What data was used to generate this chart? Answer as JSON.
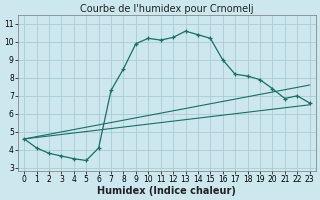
{
  "title": "Courbe de l'humidex pour Crnomelj",
  "xlabel": "Humidex (Indice chaleur)",
  "bg_color": "#cce8ee",
  "grid_color": "#aaccd4",
  "line_color": "#1a6e64",
  "xlim_min": -0.5,
  "xlim_max": 23.5,
  "ylim_min": 2.8,
  "ylim_max": 11.5,
  "xticks": [
    0,
    1,
    2,
    3,
    4,
    5,
    6,
    7,
    8,
    9,
    10,
    11,
    12,
    13,
    14,
    15,
    16,
    17,
    18,
    19,
    20,
    21,
    22,
    23
  ],
  "yticks": [
    3,
    4,
    5,
    6,
    7,
    8,
    9,
    10,
    11
  ],
  "curve1_x": [
    0,
    1,
    2,
    3,
    4,
    5,
    6,
    7,
    8,
    9,
    10,
    11,
    12,
    13,
    14,
    15,
    16,
    17,
    18,
    19,
    20,
    21,
    22,
    23
  ],
  "curve1_y": [
    4.6,
    4.1,
    3.8,
    3.65,
    3.5,
    3.4,
    4.1,
    7.3,
    8.5,
    9.9,
    10.2,
    10.1,
    10.25,
    10.6,
    10.4,
    10.2,
    9.0,
    8.2,
    8.1,
    7.9,
    7.4,
    6.85,
    7.0,
    6.6
  ],
  "curve2_x": [
    0,
    23
  ],
  "curve2_y": [
    4.6,
    7.6
  ],
  "curve3_x": [
    0,
    23
  ],
  "curve3_y": [
    4.6,
    6.5
  ],
  "title_fontsize": 7,
  "xlabel_fontsize": 7,
  "tick_fontsize": 5.5
}
